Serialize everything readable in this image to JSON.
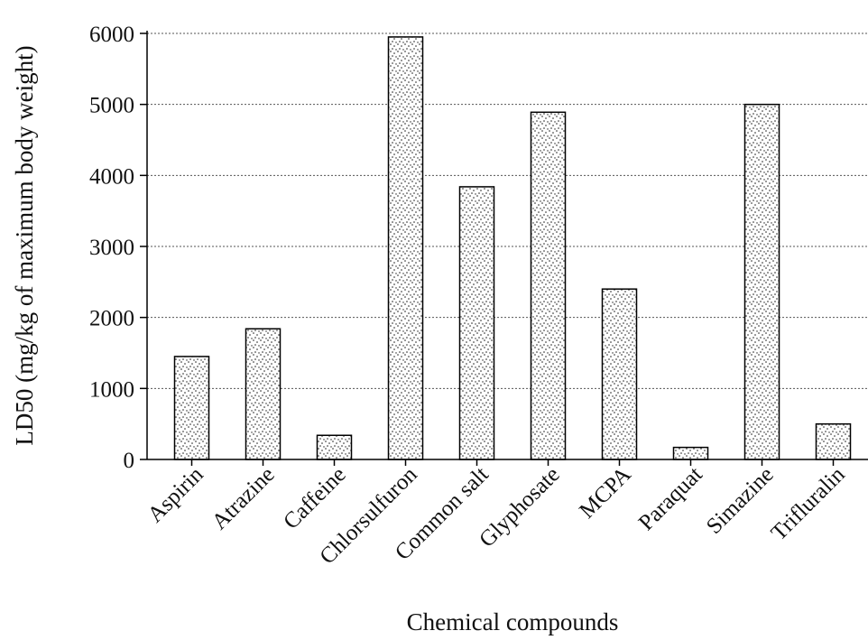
{
  "chart_data": {
    "type": "bar",
    "title": "",
    "xlabel": "Chemical compounds",
    "ylabel": "LD50 (mg/kg of maximum body weight)",
    "categories": [
      "Aspirin",
      "Atrazine",
      "Caffeine",
      "Chlorsulfuron",
      "Common salt",
      "Glyphosate",
      "MCPA",
      "Paraquat",
      "Simazine",
      "Trifluralin"
    ],
    "values": [
      1450,
      1840,
      340,
      5950,
      3840,
      4890,
      2400,
      170,
      5000,
      500
    ],
    "ylim": [
      0,
      6000
    ],
    "yticks": [
      0,
      1000,
      2000,
      3000,
      4000,
      5000,
      6000
    ],
    "grid": "horizontal dotted",
    "legend": "none",
    "bar_pattern": "stippled"
  }
}
